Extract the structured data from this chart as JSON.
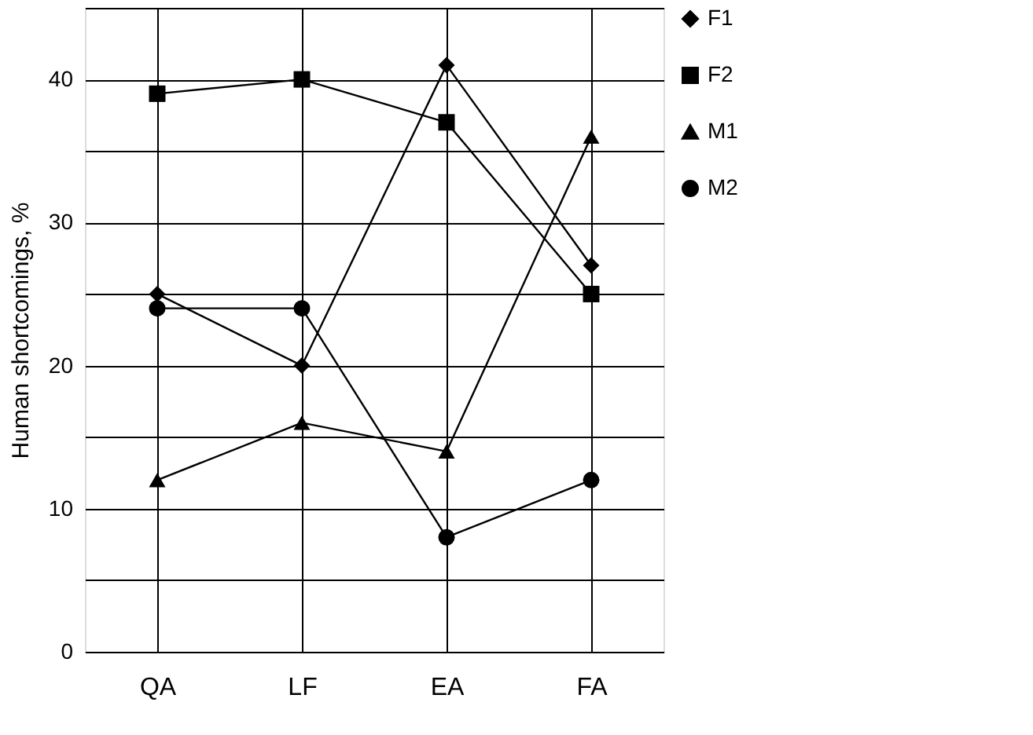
{
  "chart_data": {
    "type": "line",
    "ylabel": "Human shortcomings, %",
    "categories": [
      "QA",
      "LF",
      "EA",
      "FA"
    ],
    "series": [
      {
        "name": "F1",
        "color": "#000000",
        "marker": "diamond",
        "values": [
          25,
          20,
          41,
          27
        ]
      },
      {
        "name": "F2",
        "color": "#000000",
        "marker": "square",
        "values": [
          39,
          40,
          37,
          25
        ]
      },
      {
        "name": "M1",
        "color": "#000000",
        "marker": "triangle",
        "values": [
          12,
          16,
          14,
          36
        ]
      },
      {
        "name": "M2",
        "color": "#000000",
        "marker": "circle",
        "values": [
          24,
          24,
          8,
          12
        ]
      }
    ],
    "ylim": [
      0,
      45
    ],
    "yticks": [
      0,
      {
        "value": 5,
        "label": null
      },
      10,
      {
        "value": 15,
        "label": null
      },
      20,
      {
        "value": 25,
        "label": null
      },
      30,
      {
        "value": 35,
        "label": null
      },
      40,
      {
        "value": 45,
        "label": null
      }
    ],
    "grid": true,
    "legend": "right",
    "line_style": "solid"
  }
}
